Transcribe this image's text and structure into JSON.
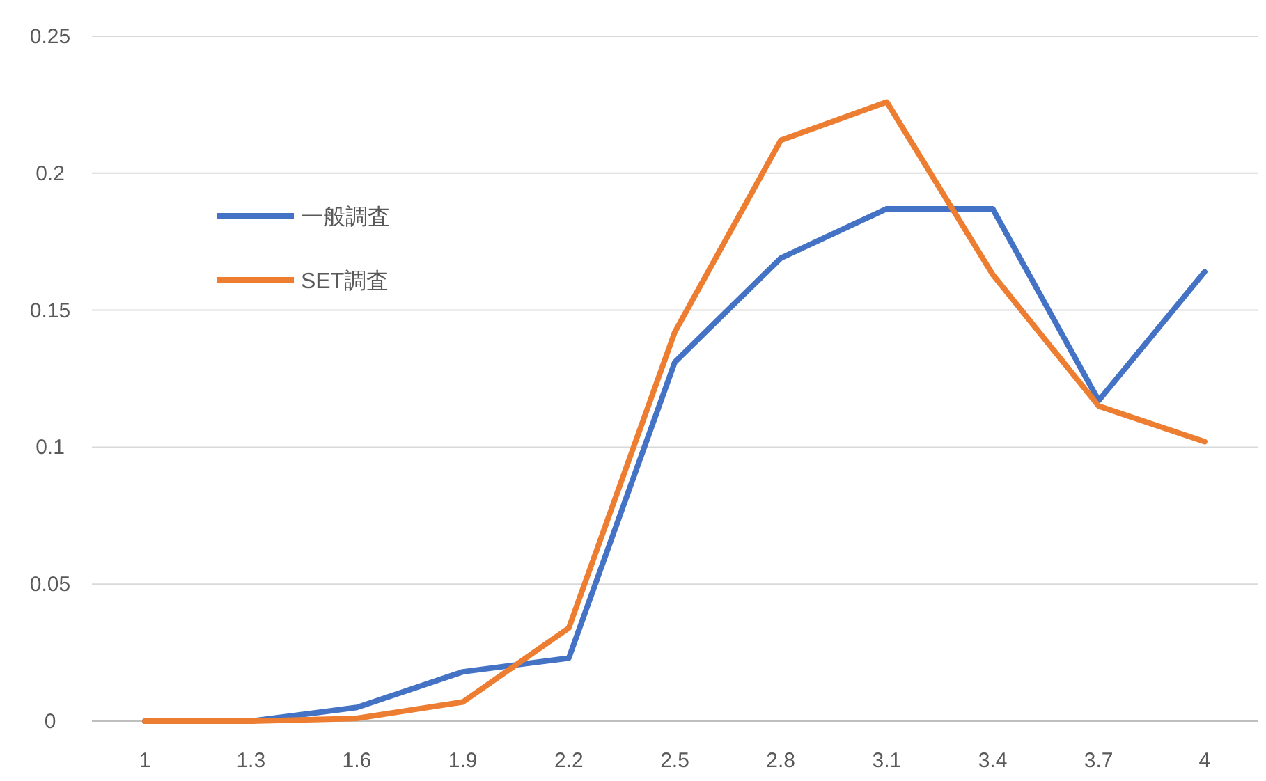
{
  "chart_data": {
    "type": "line",
    "categories": [
      "1",
      "1.3",
      "1.6",
      "1.9",
      "2.2",
      "2.5",
      "2.8",
      "3.1",
      "3.4",
      "3.7",
      "4"
    ],
    "series": [
      {
        "name": "一般調査",
        "color": "#4472c4",
        "values": [
          0,
          0,
          0.005,
          0.018,
          0.023,
          0.131,
          0.169,
          0.187,
          0.187,
          0.117,
          0.164
        ]
      },
      {
        "name": "SET調査",
        "color": "#ed7d31",
        "values": [
          0,
          0,
          0.001,
          0.007,
          0.034,
          0.142,
          0.212,
          0.226,
          0.163,
          0.115,
          0.102
        ]
      }
    ],
    "ylim": [
      0,
      0.25
    ],
    "yticks": [
      0,
      0.05,
      0.1,
      0.15,
      0.2,
      0.25
    ],
    "grid": "y",
    "legend": "left",
    "marker": "none",
    "line_style": "solid"
  }
}
